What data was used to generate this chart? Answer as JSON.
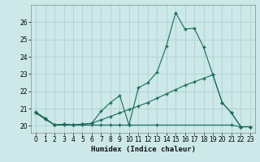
{
  "xlabel": "Humidex (Indice chaleur)",
  "xlim": [
    -0.5,
    23.5
  ],
  "ylim": [
    19.6,
    27.0
  ],
  "yticks": [
    20,
    21,
    22,
    23,
    24,
    25,
    26
  ],
  "xticks": [
    0,
    1,
    2,
    3,
    4,
    5,
    6,
    7,
    8,
    9,
    10,
    11,
    12,
    13,
    14,
    15,
    16,
    17,
    18,
    19,
    20,
    21,
    22,
    23
  ],
  "bg_color": "#cce8e8",
  "grid_color": "#aacccc",
  "line_color": "#1a6b5a",
  "line1_x": [
    0,
    1,
    2,
    3,
    4,
    5,
    6,
    7,
    8,
    9,
    10,
    11,
    12,
    13,
    14,
    15,
    16,
    17,
    18,
    19,
    20,
    21,
    22,
    23
  ],
  "line1_y": [
    20.8,
    20.45,
    20.05,
    20.1,
    20.05,
    20.1,
    20.15,
    20.85,
    21.35,
    21.75,
    20.05,
    22.2,
    22.5,
    23.1,
    24.6,
    26.55,
    25.6,
    25.65,
    24.55,
    22.95,
    21.35,
    20.75,
    19.95,
    19.95
  ],
  "line2_x": [
    0,
    1,
    2,
    3,
    4,
    5,
    6,
    7,
    8,
    9,
    10,
    11,
    12,
    13,
    14,
    15,
    16,
    17,
    18,
    19,
    20,
    21,
    22,
    23
  ],
  "line2_y": [
    20.75,
    20.4,
    20.05,
    20.1,
    20.05,
    20.1,
    20.15,
    20.35,
    20.55,
    20.75,
    20.95,
    21.15,
    21.35,
    21.6,
    21.85,
    22.1,
    22.35,
    22.55,
    22.75,
    22.95,
    21.35,
    20.75,
    19.95,
    19.95
  ],
  "line3_x": [
    0,
    1,
    2,
    3,
    4,
    5,
    6,
    7,
    8,
    9,
    10,
    13,
    21,
    22,
    23
  ],
  "line3_y": [
    20.75,
    20.4,
    20.05,
    20.05,
    20.05,
    20.05,
    20.05,
    20.05,
    20.05,
    20.05,
    20.05,
    20.05,
    20.05,
    19.95,
    19.95
  ]
}
